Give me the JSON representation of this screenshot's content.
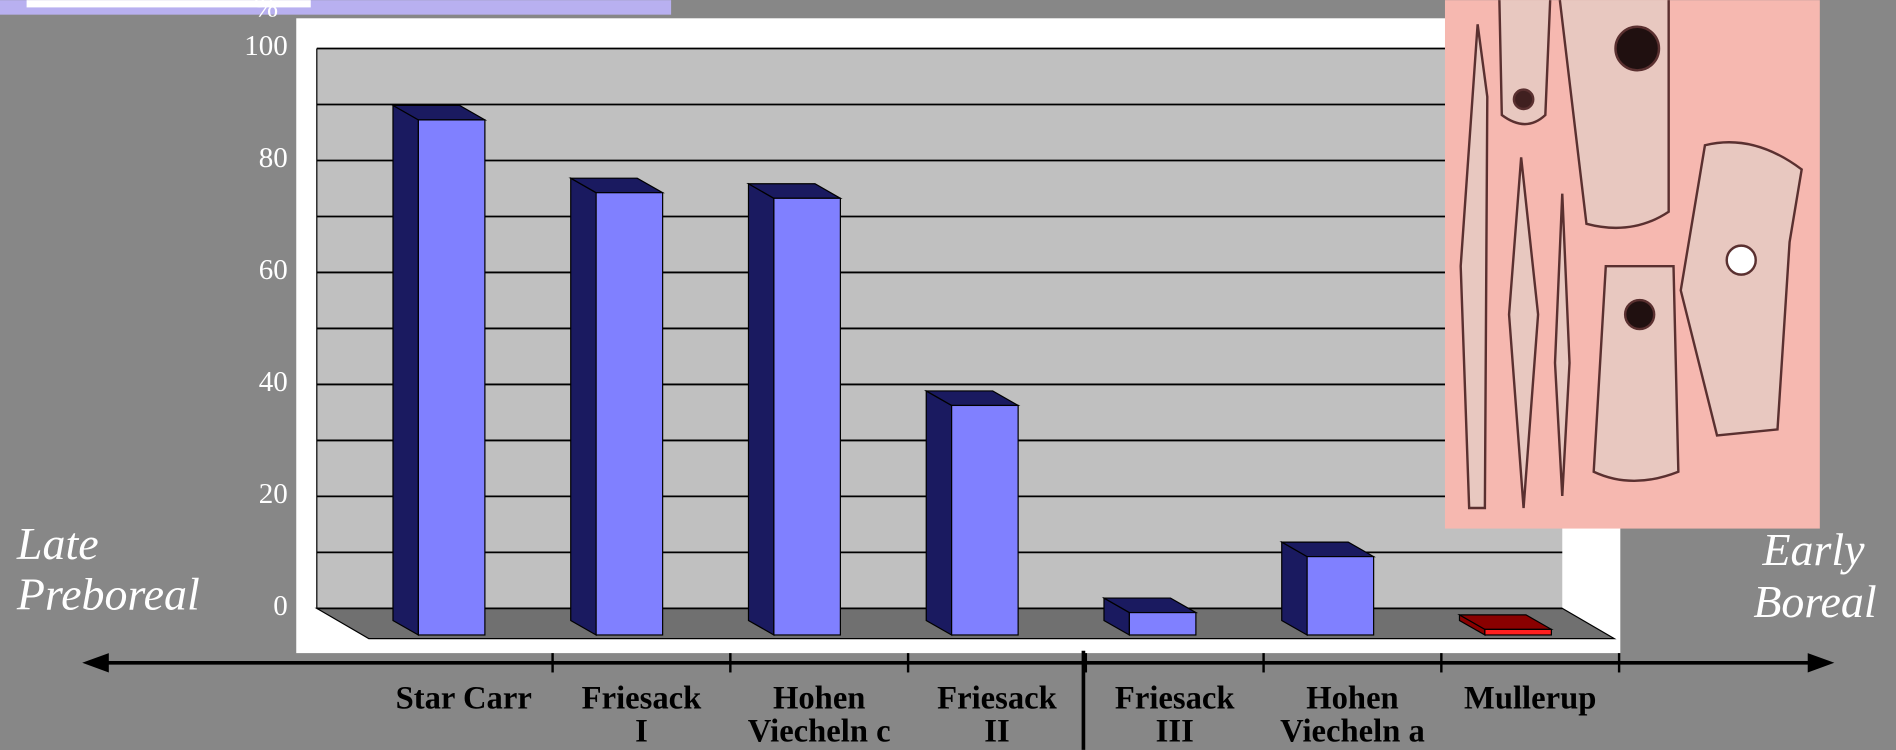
{
  "chart_data": {
    "type": "bar3d",
    "y_unit": "%",
    "categories": [
      [
        "Star Carr"
      ],
      [
        "Friesack",
        "I"
      ],
      [
        "Hohen",
        "Viecheln c"
      ],
      [
        "Friesack",
        "II"
      ],
      [
        "Friesack",
        "III"
      ],
      [
        "Hohen",
        "Viecheln a"
      ],
      [
        "Mullerup"
      ]
    ],
    "values": [
      92,
      79,
      78,
      41,
      4,
      14,
      1
    ],
    "colors": [
      "#8080ff",
      "#8080ff",
      "#8080ff",
      "#8080ff",
      "#8080ff",
      "#8080ff",
      "#ff2020"
    ],
    "ylim": [
      0,
      100
    ],
    "yticks": [
      0,
      20,
      40,
      60,
      80,
      100
    ],
    "grid": true,
    "annotations": {
      "left": [
        "Late",
        "Prebore­al"
      ],
      "right": [
        "Early",
        "Boreal"
      ]
    }
  }
}
